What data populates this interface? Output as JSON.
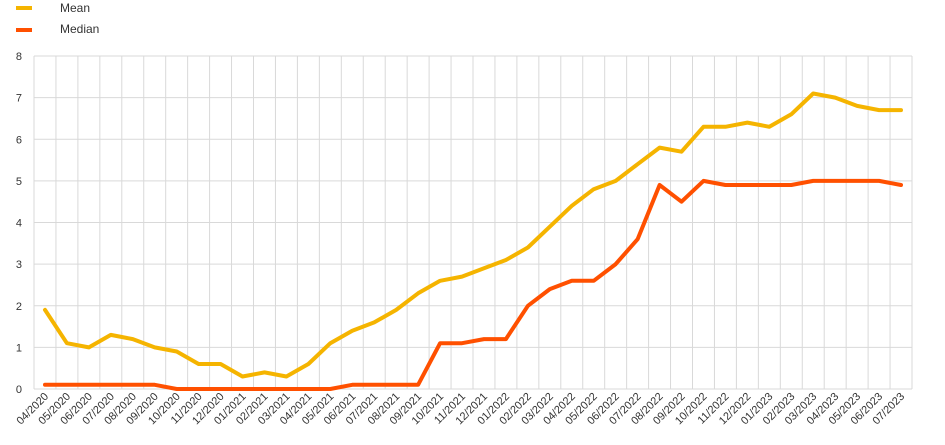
{
  "chart_data": {
    "type": "line",
    "categories": [
      "04/2020",
      "05/2020",
      "06/2020",
      "07/2020",
      "08/2020",
      "09/2020",
      "10/2020",
      "11/2020",
      "12/2020",
      "01/2021",
      "02/2021",
      "03/2021",
      "04/2021",
      "05/2021",
      "06/2021",
      "07/2021",
      "08/2021",
      "09/2021",
      "10/2021",
      "11/2021",
      "12/2021",
      "01/2022",
      "02/2022",
      "03/2022",
      "04/2022",
      "05/2022",
      "06/2022",
      "07/2022",
      "08/2022",
      "09/2022",
      "10/2022",
      "11/2022",
      "12/2022",
      "01/2023",
      "02/2023",
      "03/2023",
      "04/2023",
      "05/2023",
      "06/2023",
      "07/2023"
    ],
    "series": [
      {
        "name": "Mean",
        "color": "#f5b400",
        "values": [
          1.9,
          1.1,
          1.0,
          1.3,
          1.2,
          1.0,
          0.9,
          0.6,
          0.6,
          0.3,
          0.4,
          0.3,
          0.6,
          1.1,
          1.4,
          1.6,
          1.9,
          2.3,
          2.6,
          2.7,
          2.9,
          3.1,
          3.4,
          3.9,
          4.4,
          4.8,
          5.0,
          5.4,
          5.8,
          5.7,
          6.3,
          6.3,
          6.4,
          6.3,
          6.6,
          7.1,
          7.0,
          6.8,
          6.7,
          6.7
        ]
      },
      {
        "name": "Median",
        "color": "#ff5000",
        "values": [
          0.1,
          0.1,
          0.1,
          0.1,
          0.1,
          0.1,
          0.0,
          0.0,
          0.0,
          0.0,
          0.0,
          0.0,
          0.0,
          0.0,
          0.1,
          0.1,
          0.1,
          0.1,
          1.1,
          1.1,
          1.2,
          1.2,
          2.0,
          2.4,
          2.6,
          2.6,
          3.0,
          3.6,
          4.9,
          4.5,
          5.0,
          4.9,
          4.9,
          4.9,
          4.9,
          5.0,
          5.0,
          5.0,
          5.0,
          4.9
        ]
      }
    ],
    "yticks": [
      "0",
      "1",
      "2",
      "3",
      "4",
      "5",
      "6",
      "7",
      "8"
    ],
    "ylim": [
      0,
      8
    ],
    "grid": true,
    "legend_position": "top-left"
  }
}
